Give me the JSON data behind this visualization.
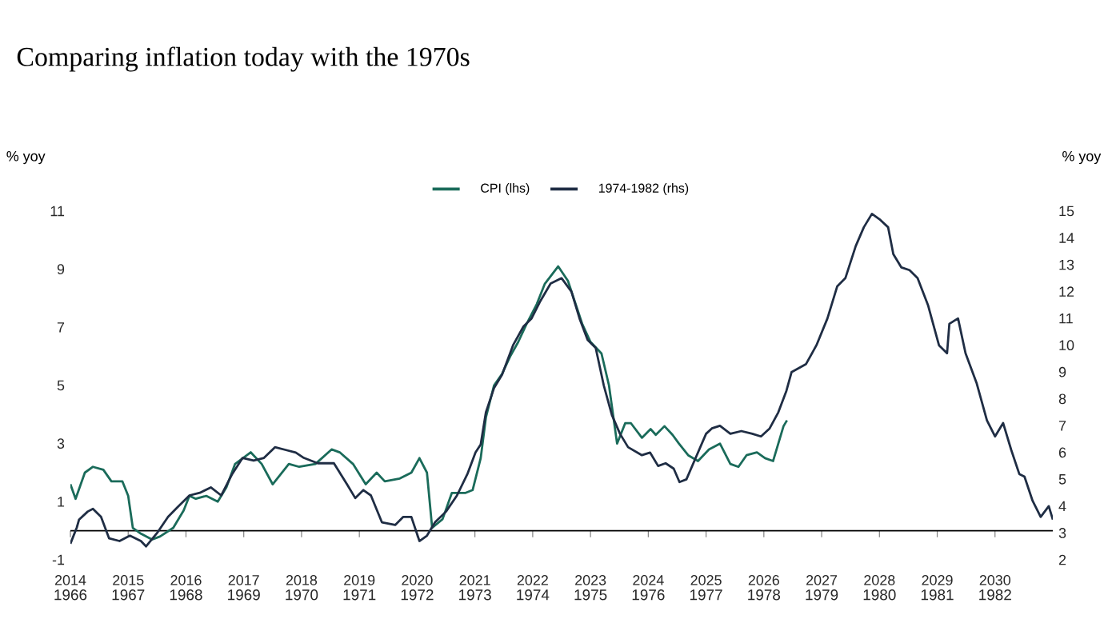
{
  "chart_data": {
    "type": "line",
    "title": "Comparing inflation today with the 1970s",
    "ylabel": "% yoy",
    "y2label": "% yoy",
    "legend": "top",
    "xlim": [
      2014,
      2031
    ],
    "xticks": [
      2014,
      2015,
      2016,
      2017,
      2018,
      2019,
      2020,
      2021,
      2022,
      2023,
      2024,
      2025,
      2026,
      2027,
      2028,
      2029,
      2030
    ],
    "x2lim": [
      1966,
      1983
    ],
    "x2ticks": [
      1966,
      1967,
      1968,
      1969,
      1970,
      1971,
      1972,
      1973,
      1974,
      1975,
      1976,
      1977,
      1978,
      1979,
      1980,
      1981,
      1982
    ],
    "ylim": [
      -1,
      11
    ],
    "yticks": [
      -1,
      1,
      3,
      5,
      7,
      9,
      11
    ],
    "y2lim": [
      2,
      15
    ],
    "y2ticks": [
      2,
      3,
      4,
      5,
      6,
      7,
      8,
      9,
      10,
      11,
      12,
      13,
      14,
      15
    ],
    "series": [
      {
        "name": "CPI (lhs)",
        "color": "#1a6b5a",
        "x": [
          2014.0,
          2014.09,
          2014.25,
          2014.39,
          2014.57,
          2014.71,
          2014.9,
          2015.0,
          2015.08,
          2015.22,
          2015.41,
          2015.55,
          2015.78,
          2015.96,
          2016.06,
          2016.17,
          2016.35,
          2016.55,
          2016.7,
          2016.85,
          2017.12,
          2017.31,
          2017.5,
          2017.78,
          2017.96,
          2018.24,
          2018.52,
          2018.66,
          2018.89,
          2019.11,
          2019.3,
          2019.44,
          2019.7,
          2019.9,
          2020.04,
          2020.17,
          2020.26,
          2020.44,
          2020.6,
          2020.83,
          2020.96,
          2021.1,
          2021.19,
          2021.33,
          2021.47,
          2021.61,
          2021.75,
          2021.89,
          2022.07,
          2022.21,
          2022.44,
          2022.61,
          2022.86,
          2023.0,
          2023.19,
          2023.32,
          2023.46,
          2023.6,
          2023.7,
          2023.89,
          2024.04,
          2024.13,
          2024.28,
          2024.42,
          2024.53,
          2024.69,
          2024.86,
          2025.05,
          2025.24,
          2025.42,
          2025.56,
          2025.7,
          2025.88,
          2026.02,
          2026.16,
          2026.25,
          2026.34,
          2026.4
        ],
        "values": [
          1.6,
          1.1,
          2.0,
          2.2,
          2.1,
          1.7,
          1.7,
          1.2,
          0.1,
          -0.1,
          -0.3,
          -0.2,
          0.1,
          0.7,
          1.2,
          1.1,
          1.2,
          1.0,
          1.5,
          2.3,
          2.7,
          2.3,
          1.6,
          2.3,
          2.2,
          2.3,
          2.8,
          2.7,
          2.3,
          1.6,
          2.0,
          1.7,
          1.8,
          2.0,
          2.5,
          2.0,
          0.1,
          0.4,
          1.3,
          1.3,
          1.4,
          2.5,
          3.9,
          5.0,
          5.4,
          6.0,
          6.5,
          7.1,
          7.8,
          8.5,
          9.1,
          8.6,
          7.1,
          6.5,
          6.1,
          5.0,
          3.0,
          3.7,
          3.7,
          3.2,
          3.5,
          3.3,
          3.6,
          3.3,
          3.0,
          2.6,
          2.4,
          2.8,
          3.0,
          2.3,
          2.2,
          2.6,
          2.7,
          2.5,
          2.4,
          3.0,
          3.6,
          3.8
        ]
      },
      {
        "name": "1974-1982 (rhs)",
        "color": "#1f2d44",
        "axis": "y2",
        "x": [
          2014.0,
          2014.11,
          2014.15,
          2014.3,
          2014.39,
          2014.53,
          2014.67,
          2014.85,
          2015.03,
          2015.22,
          2015.31,
          2015.5,
          2015.69,
          2015.87,
          2016.06,
          2016.24,
          2016.43,
          2016.61,
          2016.8,
          2016.98,
          2017.17,
          2017.35,
          2017.54,
          2017.72,
          2017.9,
          2018.04,
          2018.28,
          2018.56,
          2018.79,
          2018.93,
          2019.07,
          2019.2,
          2019.39,
          2019.62,
          2019.76,
          2019.9,
          2020.04,
          2020.17,
          2020.31,
          2020.5,
          2020.69,
          2020.87,
          2021.01,
          2021.1,
          2021.19,
          2021.33,
          2021.47,
          2021.66,
          2021.84,
          2021.98,
          2022.12,
          2022.31,
          2022.5,
          2022.67,
          2022.81,
          2022.95,
          2023.09,
          2023.23,
          2023.37,
          2023.51,
          2023.65,
          2023.89,
          2024.03,
          2024.17,
          2024.3,
          2024.44,
          2024.54,
          2024.66,
          2024.82,
          2025.0,
          2025.1,
          2025.24,
          2025.42,
          2025.61,
          2025.8,
          2025.95,
          2026.1,
          2026.25,
          2026.39,
          2026.48,
          2026.73,
          2026.91,
          2027.1,
          2027.27,
          2027.41,
          2027.59,
          2027.73,
          2027.87,
          2028.0,
          2028.15,
          2028.24,
          2028.38,
          2028.52,
          2028.66,
          2028.84,
          2029.03,
          2029.17,
          2029.21,
          2029.36,
          2029.49,
          2029.68,
          2029.86,
          2030.0,
          2030.14,
          2030.28,
          2030.42,
          2030.51,
          2030.65,
          2030.79,
          2030.93,
          2031.0
        ],
        "values": [
          2.6,
          3.2,
          3.5,
          3.8,
          3.9,
          3.6,
          2.8,
          2.7,
          2.9,
          2.7,
          2.5,
          3.0,
          3.6,
          4.0,
          4.4,
          4.5,
          4.7,
          4.4,
          5.2,
          5.8,
          5.7,
          5.8,
          6.2,
          6.1,
          6.0,
          5.8,
          5.6,
          5.6,
          4.8,
          4.3,
          4.6,
          4.4,
          3.4,
          3.3,
          3.6,
          3.6,
          2.7,
          2.9,
          3.4,
          3.8,
          4.4,
          5.2,
          6.0,
          6.3,
          7.5,
          8.4,
          8.9,
          10.0,
          10.7,
          11.0,
          11.6,
          12.3,
          12.5,
          12.0,
          11.0,
          10.2,
          9.9,
          8.5,
          7.4,
          6.7,
          6.2,
          5.9,
          6.0,
          5.5,
          5.6,
          5.4,
          4.9,
          5.0,
          5.8,
          6.7,
          6.9,
          7.0,
          6.7,
          6.8,
          6.7,
          6.6,
          6.9,
          7.5,
          8.3,
          9.0,
          9.3,
          10.0,
          11.0,
          12.2,
          12.5,
          13.7,
          14.4,
          14.9,
          14.7,
          14.4,
          13.4,
          12.9,
          12.8,
          12.5,
          11.5,
          10.0,
          9.7,
          10.8,
          11.0,
          9.7,
          8.6,
          7.2,
          6.6,
          7.1,
          6.1,
          5.2,
          5.1,
          4.2,
          3.6,
          4.0,
          3.5
        ]
      }
    ]
  }
}
